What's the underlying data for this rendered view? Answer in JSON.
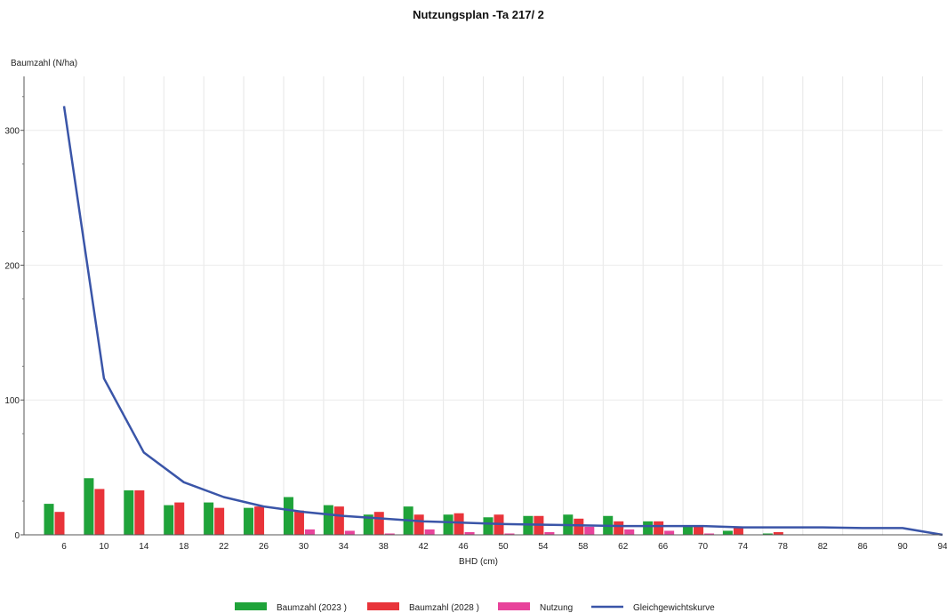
{
  "chart_data": {
    "type": "bar",
    "title": "Nutzungsplan -Ta 217/  2",
    "ylabel": "Baumzahl (N/ha)",
    "xlabel": "BHD (cm)",
    "ylim": [
      0,
      340
    ],
    "yticks": [
      0,
      100,
      200,
      300
    ],
    "grid": true,
    "legend_position": "bottom",
    "categories": [
      "6",
      "10",
      "14",
      "18",
      "22",
      "26",
      "30",
      "34",
      "38",
      "42",
      "46",
      "50",
      "54",
      "58",
      "62",
      "66",
      "70",
      "74",
      "78",
      "82",
      "86",
      "90",
      "94"
    ],
    "series": [
      {
        "name": "Baumzahl (2023 )",
        "type": "bar",
        "color": "#1fa33a",
        "values": [
          23,
          42,
          33,
          22,
          24,
          20,
          28,
          22,
          15,
          21,
          15,
          13,
          14,
          15,
          14,
          10,
          7,
          3,
          1,
          0,
          0,
          0,
          0
        ]
      },
      {
        "name": "Baumzahl (2028 )",
        "type": "bar",
        "color": "#e8343a",
        "values": [
          17,
          34,
          33,
          24,
          20,
          21,
          18,
          21,
          17,
          15,
          16,
          15,
          14,
          12,
          10,
          10,
          6,
          6,
          2,
          0,
          0,
          0,
          0
        ]
      },
      {
        "name": "Nutzung",
        "type": "bar",
        "color": "#e8439b",
        "values": [
          0,
          0,
          0,
          0,
          0,
          0,
          4,
          3,
          1,
          4,
          2,
          1,
          2,
          6,
          4,
          3,
          1,
          0,
          0,
          0,
          0,
          0,
          0
        ]
      },
      {
        "name": "Gleichgewichtskurve",
        "type": "line",
        "color": "#3a55a8",
        "values": [
          318,
          116,
          61,
          39,
          28,
          21,
          17,
          14,
          12,
          10,
          9,
          8,
          7.5,
          7,
          6.5,
          6.5,
          6.5,
          5.5,
          5.5,
          5.5,
          5,
          5,
          0
        ]
      }
    ]
  }
}
